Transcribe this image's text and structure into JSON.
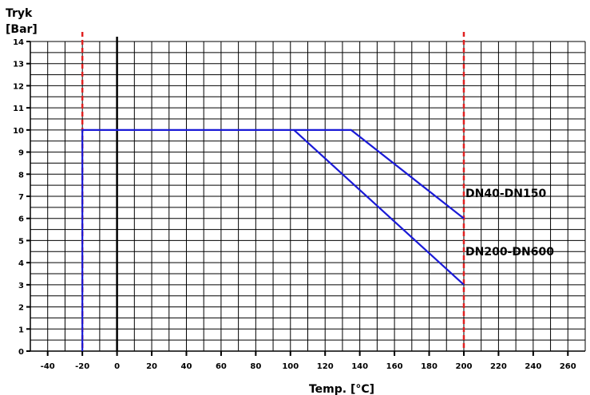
{
  "chart_data": {
    "type": "line",
    "ylabel_line1": "Tryk",
    "ylabel_line2": "[Bar]",
    "xlabel": "Temp. [°C]",
    "xlim": [
      -50,
      270
    ],
    "ylim": [
      0,
      14
    ],
    "x_ticks": [
      -40,
      -20,
      0,
      20,
      40,
      60,
      80,
      100,
      120,
      140,
      160,
      180,
      200,
      220,
      240,
      260
    ],
    "y_ticks": [
      0,
      1,
      2,
      3,
      4,
      5,
      6,
      7,
      8,
      9,
      10,
      11,
      12,
      13,
      14
    ],
    "grid": true,
    "series": [
      {
        "name": "DN40-DN150",
        "color": "#1a1ad6",
        "points": [
          [
            -20,
            0
          ],
          [
            -20,
            10
          ],
          [
            135,
            10
          ],
          [
            200,
            6
          ]
        ]
      },
      {
        "name": "DN200-DN600",
        "color": "#1a1ad6",
        "points": [
          [
            102,
            10
          ],
          [
            200,
            3
          ]
        ]
      }
    ],
    "reference_lines": [
      {
        "axis": "x",
        "value": -20,
        "color": "#e02020",
        "style": "dashed"
      },
      {
        "axis": "x",
        "value": 200,
        "color": "#e02020",
        "style": "dashed"
      },
      {
        "axis": "x",
        "value": 0,
        "color": "#000000",
        "style": "solid"
      }
    ]
  }
}
